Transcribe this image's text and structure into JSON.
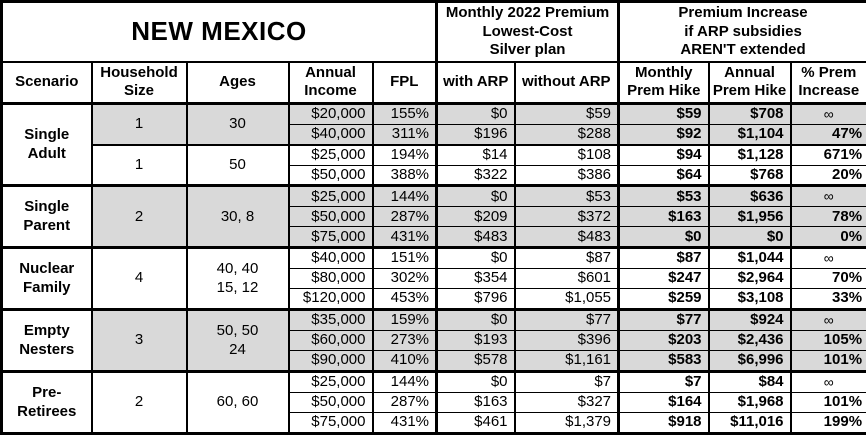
{
  "title": "NEW MEXICO",
  "header": {
    "premium_group": "Monthly 2022 Premium\nLowest-Cost\nSilver plan",
    "increase_group": "Premium Increase\nif ARP subsidies\nAREN'T extended",
    "columns": {
      "scenario": "Scenario",
      "household": "Household\nSize",
      "ages": "Ages",
      "income": "Annual\nIncome",
      "fpl": "FPL",
      "with_arp": "with ARP",
      "without_arp": "without ARP",
      "monthly_hike": "Monthly\nPrem Hike",
      "annual_hike": "Annual\nPrem Hike",
      "pct_increase": "% Prem\nIncrease"
    }
  },
  "colors": {
    "shaded_row": "#d9d9d9",
    "border": "#000000",
    "background": "#ffffff"
  },
  "groups": [
    {
      "scenario": "Single\nAdult",
      "subgroups": [
        {
          "household_size": "1",
          "ages": "30",
          "shaded": true,
          "rows": [
            [
              "$20,000",
              "155%",
              "$0",
              "$59",
              "$59",
              "$708",
              "∞"
            ],
            [
              "$40,000",
              "311%",
              "$196",
              "$288",
              "$92",
              "$1,104",
              "47%"
            ]
          ]
        },
        {
          "household_size": "1",
          "ages": "50",
          "shaded": false,
          "rows": [
            [
              "$25,000",
              "194%",
              "$14",
              "$108",
              "$94",
              "$1,128",
              "671%"
            ],
            [
              "$50,000",
              "388%",
              "$322",
              "$386",
              "$64",
              "$768",
              "20%"
            ]
          ]
        }
      ]
    },
    {
      "scenario": "Single\nParent",
      "subgroups": [
        {
          "household_size": "2",
          "ages": "30, 8",
          "shaded": true,
          "rows": [
            [
              "$25,000",
              "144%",
              "$0",
              "$53",
              "$53",
              "$636",
              "∞"
            ],
            [
              "$50,000",
              "287%",
              "$209",
              "$372",
              "$163",
              "$1,956",
              "78%"
            ],
            [
              "$75,000",
              "431%",
              "$483",
              "$483",
              "$0",
              "$0",
              "0%"
            ]
          ]
        }
      ]
    },
    {
      "scenario": "Nuclear\nFamily",
      "subgroups": [
        {
          "household_size": "4",
          "ages": "40, 40\n15, 12",
          "shaded": false,
          "rows": [
            [
              "$40,000",
              "151%",
              "$0",
              "$87",
              "$87",
              "$1,044",
              "∞"
            ],
            [
              "$80,000",
              "302%",
              "$354",
              "$601",
              "$247",
              "$2,964",
              "70%"
            ],
            [
              "$120,000",
              "453%",
              "$796",
              "$1,055",
              "$259",
              "$3,108",
              "33%"
            ]
          ]
        }
      ]
    },
    {
      "scenario": "Empty\nNesters",
      "subgroups": [
        {
          "household_size": "3",
          "ages": "50, 50\n24",
          "shaded": true,
          "rows": [
            [
              "$35,000",
              "159%",
              "$0",
              "$77",
              "$77",
              "$924",
              "∞"
            ],
            [
              "$60,000",
              "273%",
              "$193",
              "$396",
              "$203",
              "$2,436",
              "105%"
            ],
            [
              "$90,000",
              "410%",
              "$578",
              "$1,161",
              "$583",
              "$6,996",
              "101%"
            ]
          ]
        }
      ]
    },
    {
      "scenario": "Pre-\nRetirees",
      "subgroups": [
        {
          "household_size": "2",
          "ages": "60, 60",
          "shaded": false,
          "rows": [
            [
              "$25,000",
              "144%",
              "$0",
              "$7",
              "$7",
              "$84",
              "∞"
            ],
            [
              "$50,000",
              "287%",
              "$163",
              "$327",
              "$164",
              "$1,968",
              "101%"
            ],
            [
              "$75,000",
              "431%",
              "$461",
              "$1,379",
              "$918",
              "$11,016",
              "199%"
            ]
          ]
        }
      ]
    }
  ]
}
